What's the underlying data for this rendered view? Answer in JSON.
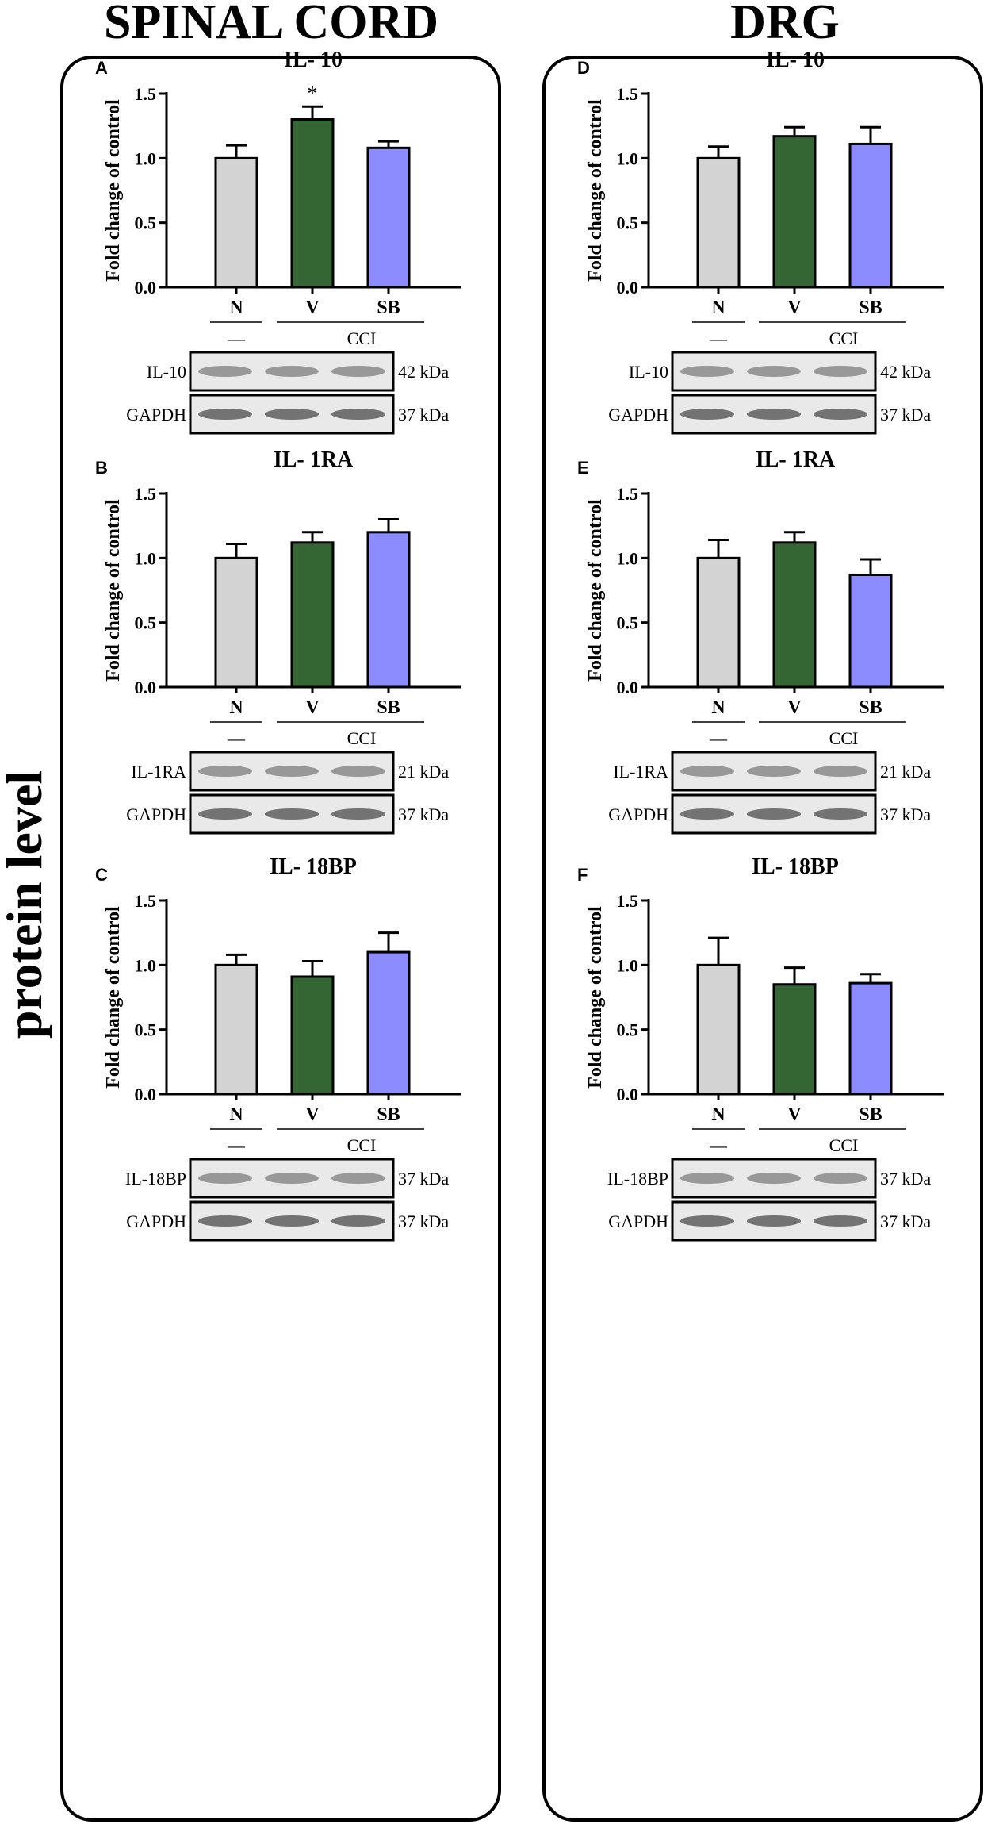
{
  "columns": {
    "left_title": "SPINAL CORD",
    "right_title": "DRG",
    "side_label": "protein level"
  },
  "colors": {
    "N": "#d3d3d3",
    "V": "#336633",
    "SB": "#8c8cff",
    "axis": "#000000"
  },
  "axis": {
    "ylabel": "Fold change of control",
    "yticks": [
      "0.0",
      "0.5",
      "1.0",
      "1.5"
    ],
    "ylim": [
      0,
      1.5
    ],
    "groups": [
      "N",
      "V",
      "SB"
    ],
    "control_label": "—",
    "cci_label": "CCI"
  },
  "chart_data": [
    {
      "type": "bar",
      "letter": "A",
      "title": "IL- 10",
      "categories": [
        "N",
        "V",
        "SB"
      ],
      "values": [
        1.0,
        1.3,
        1.08
      ],
      "errors": [
        0.1,
        0.1,
        0.05
      ],
      "sig": [
        "",
        "*",
        ""
      ],
      "ylim": [
        0,
        1.5
      ],
      "ylabel": "Fold change of control",
      "blot": {
        "target": "IL-10",
        "target_kda": "42 kDa",
        "ref": "GAPDH",
        "ref_kda": "37 kDa"
      }
    },
    {
      "type": "bar",
      "letter": "B",
      "title": "IL- 1RA",
      "categories": [
        "N",
        "V",
        "SB"
      ],
      "values": [
        1.0,
        1.12,
        1.2
      ],
      "errors": [
        0.11,
        0.08,
        0.1
      ],
      "sig": [
        "",
        "",
        ""
      ],
      "ylim": [
        0,
        1.5
      ],
      "ylabel": "Fold change of control",
      "blot": {
        "target": "IL-1RA",
        "target_kda": "21 kDa",
        "ref": "GAPDH",
        "ref_kda": "37 kDa"
      }
    },
    {
      "type": "bar",
      "letter": "C",
      "title": "IL- 18BP",
      "categories": [
        "N",
        "V",
        "SB"
      ],
      "values": [
        1.0,
        0.91,
        1.1
      ],
      "errors": [
        0.08,
        0.12,
        0.15
      ],
      "sig": [
        "",
        "",
        ""
      ],
      "ylim": [
        0,
        1.5
      ],
      "ylabel": "Fold change of control",
      "blot": {
        "target": "IL-18BP",
        "target_kda": "37 kDa",
        "ref": "GAPDH",
        "ref_kda": "37 kDa"
      }
    },
    {
      "type": "bar",
      "letter": "D",
      "title": "IL- 10",
      "categories": [
        "N",
        "V",
        "SB"
      ],
      "values": [
        1.0,
        1.17,
        1.11
      ],
      "errors": [
        0.09,
        0.07,
        0.13
      ],
      "sig": [
        "",
        "",
        ""
      ],
      "ylim": [
        0,
        1.5
      ],
      "ylabel": "Fold change of control",
      "blot": {
        "target": "IL-10",
        "target_kda": "42 kDa",
        "ref": "GAPDH",
        "ref_kda": "37 kDa"
      }
    },
    {
      "type": "bar",
      "letter": "E",
      "title": "IL- 1RA",
      "categories": [
        "N",
        "V",
        "SB"
      ],
      "values": [
        1.0,
        1.12,
        0.87
      ],
      "errors": [
        0.14,
        0.08,
        0.12
      ],
      "sig": [
        "",
        "",
        ""
      ],
      "ylim": [
        0,
        1.5
      ],
      "ylabel": "Fold change of control",
      "blot": {
        "target": "IL-1RA",
        "target_kda": "21 kDa",
        "ref": "GAPDH",
        "ref_kda": "37 kDa"
      }
    },
    {
      "type": "bar",
      "letter": "F",
      "title": "IL- 18BP",
      "categories": [
        "N",
        "V",
        "SB"
      ],
      "values": [
        1.0,
        0.85,
        0.86
      ],
      "errors": [
        0.21,
        0.13,
        0.07
      ],
      "sig": [
        "",
        "",
        ""
      ],
      "ylim": [
        0,
        1.5
      ],
      "ylabel": "Fold change of control",
      "blot": {
        "target": "IL-18BP",
        "target_kda": "37 kDa",
        "ref": "GAPDH",
        "ref_kda": "37 kDa"
      }
    }
  ]
}
